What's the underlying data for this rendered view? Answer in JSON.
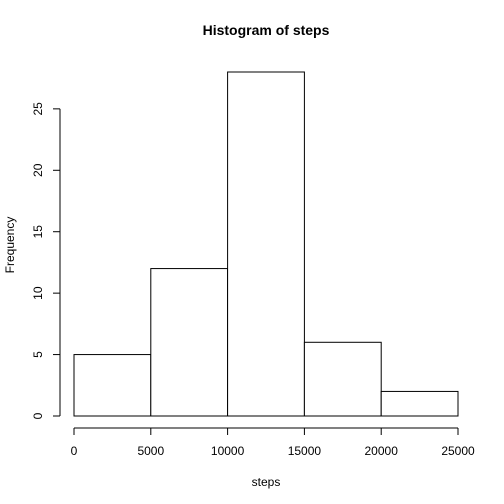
{
  "chart_data": {
    "type": "bar",
    "title": "Histogram of steps",
    "xlabel": "steps",
    "ylabel": "Frequency",
    "bins": [
      {
        "start": 0,
        "end": 5000,
        "count": 5
      },
      {
        "start": 5000,
        "end": 10000,
        "count": 12
      },
      {
        "start": 10000,
        "end": 15000,
        "count": 28
      },
      {
        "start": 15000,
        "end": 20000,
        "count": 6
      },
      {
        "start": 20000,
        "end": 25000,
        "count": 2
      }
    ],
    "xlim": [
      0,
      25000
    ],
    "ylim": [
      0,
      28
    ],
    "xticks": [
      0,
      5000,
      10000,
      15000,
      20000,
      25000
    ],
    "yticks": [
      0,
      5,
      10,
      15,
      20,
      25
    ],
    "grid": false,
    "colors": {
      "bar_fill": "#ffffff",
      "bar_stroke": "#000000"
    }
  }
}
